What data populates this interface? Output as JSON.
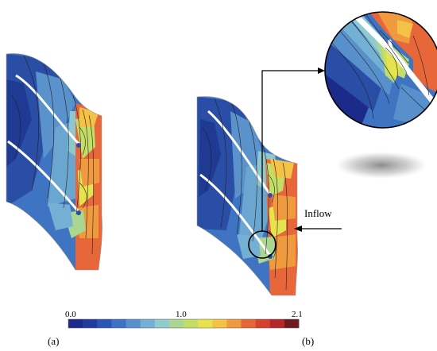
{
  "panels": [
    {
      "label": "(a)"
    },
    {
      "label": "(b)"
    }
  ],
  "annotation": {
    "inflow_label": "Inflow"
  },
  "colorbar": {
    "ticks": [
      {
        "value": 0.0,
        "label": "0.0"
      },
      {
        "value": 1.0,
        "label": "1.0"
      },
      {
        "value": 2.1,
        "label": "2.1"
      }
    ],
    "min": 0.0,
    "max": 2.1,
    "colors": [
      "#1c2a8c",
      "#233a9e",
      "#2d55b5",
      "#3e72c4",
      "#5890cc",
      "#74b0d3",
      "#92cbcf",
      "#a9d792",
      "#c4dd67",
      "#e6e34f",
      "#f4c246",
      "#ef9a3e",
      "#e8673a",
      "#d7412f",
      "#b5272a",
      "#6e1a1e"
    ]
  },
  "colors": {
    "low": "#2a4ea6",
    "mid": "#d8dd55",
    "high": "#e5532f",
    "peak": "#6e1a1e"
  }
}
